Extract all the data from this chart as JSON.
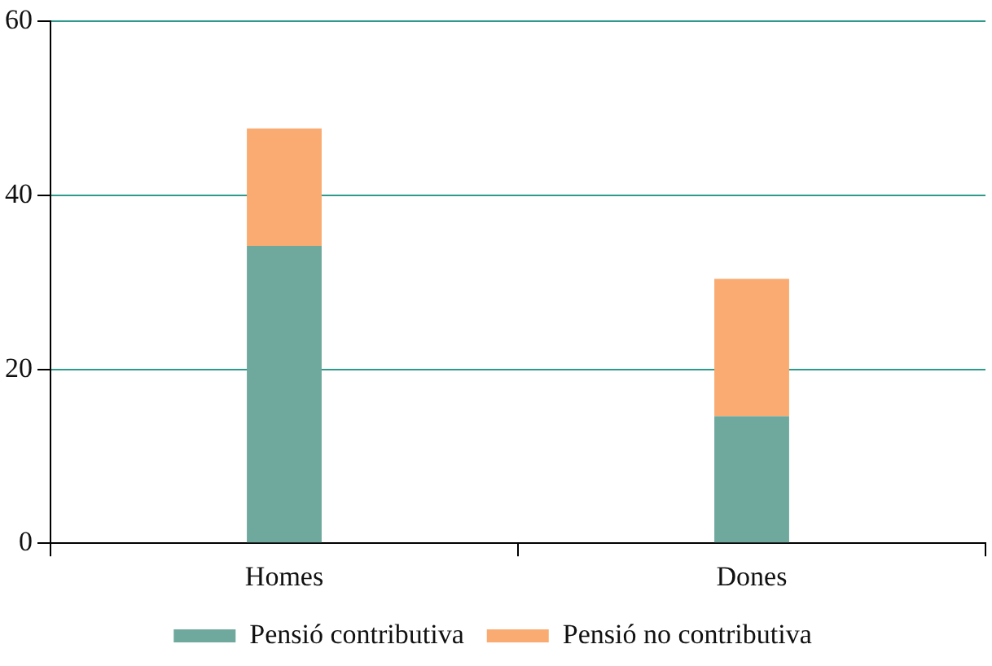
{
  "chart_data": {
    "type": "bar",
    "categories": [
      "Homes",
      "Dones"
    ],
    "stacked": true,
    "series": [
      {
        "name": "Pensió contributiva",
        "color": "#6fa89d",
        "values": [
          34.2,
          14.6
        ]
      },
      {
        "name": "Pensió no contributiva",
        "color": "#f9ab71",
        "values": [
          13.5,
          15.8
        ]
      }
    ],
    "ylim": [
      0,
      60
    ],
    "yticks": [
      0,
      20,
      40,
      60
    ],
    "grid": "y",
    "legend": "bottom"
  }
}
